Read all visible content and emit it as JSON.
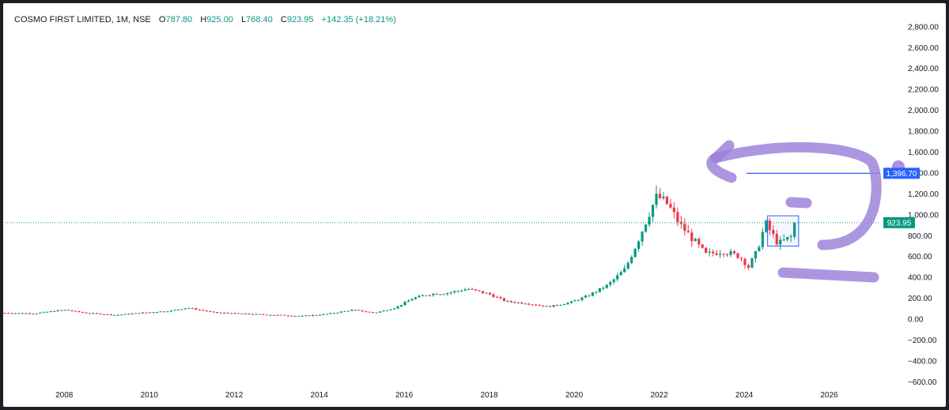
{
  "header": {
    "symbol": "COSMO FIRST LIMITED, 1M, NSE",
    "o_label": "O",
    "o_value": "787.80",
    "h_label": "H",
    "h_value": "925.00",
    "l_label": "L",
    "l_value": "768.40",
    "c_label": "C",
    "c_value": "923.95",
    "change": "+142.35 (+18.21%)"
  },
  "colors": {
    "up": "#089981",
    "down": "#f23645",
    "annotation": "#9b7fd9",
    "line": "#2962ff",
    "dotted": "#089981"
  },
  "chart_data": {
    "type": "candlestick",
    "xlim": [
      2006.6,
      2027.2
    ],
    "ylim": [
      -650,
      2950
    ],
    "y_ticks": [
      2800,
      2600,
      2400,
      2200,
      2000,
      1800,
      1600,
      1400,
      1200,
      1000,
      800,
      600,
      400,
      200,
      0,
      -200,
      -400,
      -600
    ],
    "y_tick_labels": [
      "2,800.00",
      "2,600.00",
      "2,400.00",
      "2,200.00",
      "2,000.00",
      "1,800.00",
      "1,600.00",
      "1,400.00",
      "1,200.00",
      "1,000.00",
      "800.00",
      "600.00",
      "400.00",
      "200.00",
      "0.00",
      "−200.00",
      "−400.00",
      "−600.00"
    ],
    "x_ticks": [
      2008,
      2010,
      2012,
      2014,
      2016,
      2018,
      2020,
      2022,
      2024,
      2026
    ],
    "x_tick_labels": [
      "2008",
      "2010",
      "2012",
      "2014",
      "2016",
      "2018",
      "2020",
      "2022",
      "2024",
      "2026"
    ],
    "close_waypoints": [
      [
        2006.6,
        60
      ],
      [
        2007.3,
        55
      ],
      [
        2008.0,
        90
      ],
      [
        2008.5,
        60
      ],
      [
        2009.2,
        40
      ],
      [
        2009.8,
        60
      ],
      [
        2010.5,
        80
      ],
      [
        2010.9,
        110
      ],
      [
        2011.5,
        65
      ],
      [
        2012.3,
        50
      ],
      [
        2013.0,
        40
      ],
      [
        2013.6,
        30
      ],
      [
        2014.2,
        50
      ],
      [
        2014.8,
        90
      ],
      [
        2015.3,
        60
      ],
      [
        2015.8,
        110
      ],
      [
        2016.2,
        200
      ],
      [
        2016.6,
        240
      ],
      [
        2017.0,
        250
      ],
      [
        2017.5,
        290
      ],
      [
        2018.0,
        240
      ],
      [
        2018.4,
        170
      ],
      [
        2018.9,
        150
      ],
      [
        2019.4,
        120
      ],
      [
        2019.9,
        160
      ],
      [
        2020.3,
        220
      ],
      [
        2020.8,
        330
      ],
      [
        2021.2,
        480
      ],
      [
        2021.5,
        750
      ],
      [
        2021.8,
        1050
      ],
      [
        2021.95,
        1180
      ],
      [
        2022.2,
        1100
      ],
      [
        2022.5,
        900
      ],
      [
        2022.8,
        760
      ],
      [
        2023.1,
        620
      ],
      [
        2023.5,
        650
      ],
      [
        2023.9,
        600
      ],
      [
        2024.1,
        500
      ],
      [
        2024.3,
        650
      ],
      [
        2024.5,
        920
      ],
      [
        2024.8,
        720
      ],
      [
        2025.1,
        787.8
      ],
      [
        2025.2,
        923.95
      ]
    ],
    "last_close": 923.95,
    "last_ohlc": {
      "open": 787.8,
      "high": 925.0,
      "low": 768.4,
      "close": 923.95
    },
    "horizontal_line": {
      "value": 1396.7,
      "x_start": 2024.05,
      "label": "1,396.70"
    },
    "last_price_label": "923.95"
  }
}
